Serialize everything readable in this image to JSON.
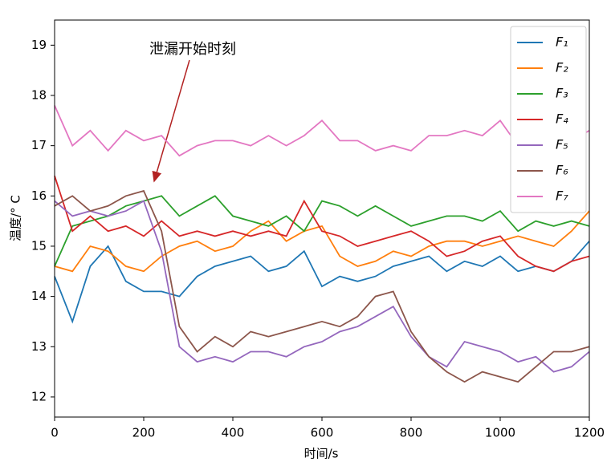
{
  "chart_data": {
    "type": "line",
    "annotation": "泄漏开始时刻",
    "xlabel": "时间/s",
    "ylabel": "温度/° C",
    "xlim": [
      0,
      1200
    ],
    "xticks": [
      0,
      200,
      400,
      600,
      800,
      1000,
      1200
    ],
    "ylim": [
      11.6,
      19.5
    ],
    "yticks": [
      12,
      13,
      14,
      15,
      16,
      17,
      18,
      19
    ],
    "legend": "upper right",
    "x": [
      0,
      40,
      80,
      120,
      160,
      200,
      240,
      280,
      320,
      360,
      400,
      440,
      480,
      520,
      560,
      600,
      640,
      680,
      720,
      760,
      800,
      840,
      880,
      920,
      960,
      1000,
      1040,
      1080,
      1120,
      1160,
      1200
    ],
    "series": [
      {
        "name": "F₁",
        "color": "#1f77b4",
        "values": [
          14.4,
          13.5,
          14.6,
          15.0,
          14.3,
          14.1,
          14.1,
          14.0,
          14.4,
          14.6,
          14.7,
          14.8,
          14.5,
          14.6,
          14.9,
          14.2,
          14.4,
          14.3,
          14.4,
          14.6,
          14.7,
          14.8,
          14.5,
          14.7,
          14.6,
          14.8,
          14.5,
          14.6,
          14.5,
          14.7,
          15.1
        ]
      },
      {
        "name": "F₂",
        "color": "#ff7f0e",
        "values": [
          14.6,
          14.5,
          15.0,
          14.9,
          14.6,
          14.5,
          14.8,
          15.0,
          15.1,
          14.9,
          15.0,
          15.3,
          15.5,
          15.1,
          15.3,
          15.4,
          14.8,
          14.6,
          14.7,
          14.9,
          14.8,
          15.0,
          15.1,
          15.1,
          15.0,
          15.1,
          15.2,
          15.1,
          15.0,
          15.3,
          15.7
        ]
      },
      {
        "name": "F₃",
        "color": "#2ca02c",
        "values": [
          14.6,
          15.4,
          15.5,
          15.6,
          15.8,
          15.9,
          16.0,
          15.6,
          15.8,
          16.0,
          15.6,
          15.5,
          15.4,
          15.6,
          15.3,
          15.9,
          15.8,
          15.6,
          15.8,
          15.6,
          15.4,
          15.5,
          15.6,
          15.6,
          15.5,
          15.7,
          15.3,
          15.5,
          15.4,
          15.5,
          15.4
        ]
      },
      {
        "name": "F₄",
        "color": "#d62728",
        "values": [
          16.4,
          15.3,
          15.6,
          15.3,
          15.4,
          15.2,
          15.5,
          15.2,
          15.3,
          15.2,
          15.3,
          15.2,
          15.3,
          15.2,
          15.9,
          15.3,
          15.2,
          15.0,
          15.1,
          15.2,
          15.3,
          15.1,
          14.8,
          14.9,
          15.1,
          15.2,
          14.8,
          14.6,
          14.5,
          14.7,
          14.8
        ]
      },
      {
        "name": "F₅",
        "color": "#9467bd",
        "values": [
          15.9,
          15.6,
          15.7,
          15.6,
          15.7,
          15.9,
          14.9,
          13.0,
          12.7,
          12.8,
          12.7,
          12.9,
          12.9,
          12.8,
          13.0,
          13.1,
          13.3,
          13.4,
          13.6,
          13.8,
          13.2,
          12.8,
          12.6,
          13.1,
          13.0,
          12.9,
          12.7,
          12.8,
          12.5,
          12.6,
          12.9
        ]
      },
      {
        "name": "F₆",
        "color": "#8c564b",
        "values": [
          15.8,
          16.0,
          15.7,
          15.8,
          16.0,
          16.1,
          15.3,
          13.4,
          12.9,
          13.2,
          13.0,
          13.3,
          13.2,
          13.3,
          13.4,
          13.5,
          13.4,
          13.6,
          14.0,
          14.1,
          13.3,
          12.8,
          12.5,
          12.3,
          12.5,
          12.4,
          12.3,
          12.6,
          12.9,
          12.9,
          13.0
        ]
      },
      {
        "name": "F₇",
        "color": "#e377c2",
        "values": [
          17.8,
          17.0,
          17.3,
          16.9,
          17.3,
          17.1,
          17.2,
          16.8,
          17.0,
          17.1,
          17.1,
          17.0,
          17.2,
          17.0,
          17.2,
          17.5,
          17.1,
          17.1,
          16.9,
          17.0,
          16.9,
          17.2,
          17.2,
          17.3,
          17.2,
          17.5,
          17.0,
          17.1,
          17.2,
          17.1,
          17.3
        ]
      }
    ]
  }
}
